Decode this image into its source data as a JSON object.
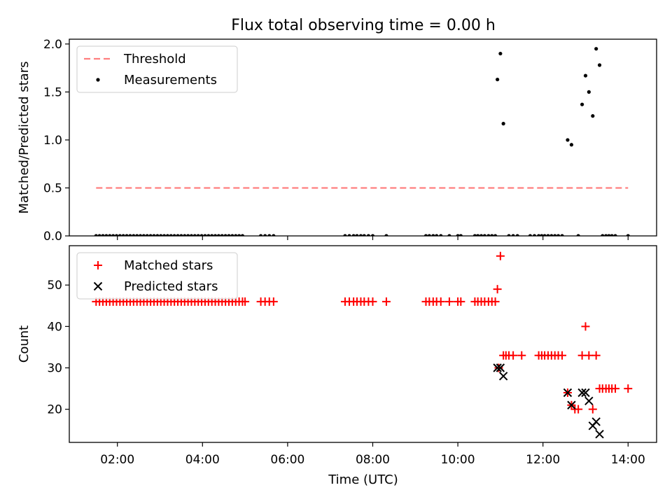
{
  "figure": {
    "title": "Flux total observing time = 0.00 h",
    "xlabel": "Time (UTC)",
    "xlim": [
      0.87,
      14.67
    ],
    "xticks": [
      2,
      4,
      6,
      8,
      10,
      12,
      14
    ],
    "xtick_labels": [
      "02:00",
      "04:00",
      "06:00",
      "08:00",
      "10:00",
      "12:00",
      "14:00"
    ]
  },
  "chart_data": [
    {
      "type": "scatter",
      "ylabel": "Matched/Predicted stars",
      "ylim": [
        0,
        2.05
      ],
      "yticks": [
        0.0,
        0.5,
        1.0,
        1.5,
        2.0
      ],
      "ytick_labels": [
        "0.0",
        "0.5",
        "1.0",
        "1.5",
        "2.0"
      ],
      "legend": {
        "placement": "upper left",
        "entries": [
          "Threshold",
          "Measurements"
        ]
      },
      "threshold": {
        "name": "Threshold",
        "y": 0.5,
        "x_range": [
          1.5,
          14.0
        ],
        "color": "#ff7f7f",
        "style": "dashed"
      },
      "series": [
        {
          "name": "Measurements",
          "color": "#000000",
          "marker": "dot",
          "points": [
            [
              1.5,
              0
            ],
            [
              1.58,
              0
            ],
            [
              1.66,
              0
            ],
            [
              1.74,
              0
            ],
            [
              1.82,
              0
            ],
            [
              1.9,
              0
            ],
            [
              1.98,
              0
            ],
            [
              2.06,
              0
            ],
            [
              2.14,
              0
            ],
            [
              2.22,
              0
            ],
            [
              2.3,
              0
            ],
            [
              2.38,
              0
            ],
            [
              2.46,
              0
            ],
            [
              2.54,
              0
            ],
            [
              2.62,
              0
            ],
            [
              2.7,
              0
            ],
            [
              2.78,
              0
            ],
            [
              2.86,
              0
            ],
            [
              2.94,
              0
            ],
            [
              3.02,
              0
            ],
            [
              3.1,
              0
            ],
            [
              3.18,
              0
            ],
            [
              3.26,
              0
            ],
            [
              3.34,
              0
            ],
            [
              3.42,
              0
            ],
            [
              3.5,
              0
            ],
            [
              3.58,
              0
            ],
            [
              3.66,
              0
            ],
            [
              3.74,
              0
            ],
            [
              3.82,
              0
            ],
            [
              3.9,
              0
            ],
            [
              3.98,
              0
            ],
            [
              4.06,
              0
            ],
            [
              4.14,
              0
            ],
            [
              4.22,
              0
            ],
            [
              4.3,
              0
            ],
            [
              4.38,
              0
            ],
            [
              4.46,
              0
            ],
            [
              4.54,
              0
            ],
            [
              4.62,
              0
            ],
            [
              4.7,
              0
            ],
            [
              4.78,
              0
            ],
            [
              4.86,
              0
            ],
            [
              4.94,
              0
            ],
            [
              5.37,
              0
            ],
            [
              5.47,
              0
            ],
            [
              5.57,
              0
            ],
            [
              5.67,
              0
            ],
            [
              7.35,
              0
            ],
            [
              7.45,
              0
            ],
            [
              7.55,
              0
            ],
            [
              7.63,
              0
            ],
            [
              7.72,
              0
            ],
            [
              7.8,
              0
            ],
            [
              7.9,
              0
            ],
            [
              8.0,
              0
            ],
            [
              8.32,
              0
            ],
            [
              9.25,
              0
            ],
            [
              9.33,
              0
            ],
            [
              9.42,
              0
            ],
            [
              9.5,
              0
            ],
            [
              9.6,
              0
            ],
            [
              9.8,
              0
            ],
            [
              10.0,
              0
            ],
            [
              10.07,
              0
            ],
            [
              10.4,
              0
            ],
            [
              10.47,
              0
            ],
            [
              10.55,
              0
            ],
            [
              10.63,
              0
            ],
            [
              10.72,
              0
            ],
            [
              10.8,
              0
            ],
            [
              10.88,
              0
            ],
            [
              10.93,
              1.63
            ],
            [
              11.0,
              1.9
            ],
            [
              11.07,
              1.17
            ],
            [
              11.2,
              0
            ],
            [
              11.3,
              0
            ],
            [
              11.4,
              0
            ],
            [
              11.7,
              0
            ],
            [
              11.8,
              0
            ],
            [
              11.9,
              0
            ],
            [
              11.97,
              0
            ],
            [
              12.04,
              0
            ],
            [
              12.12,
              0
            ],
            [
              12.2,
              0
            ],
            [
              12.28,
              0
            ],
            [
              12.36,
              0
            ],
            [
              12.45,
              0
            ],
            [
              12.58,
              1.0
            ],
            [
              12.67,
              0.95
            ],
            [
              12.83,
              0
            ],
            [
              12.92,
              1.37
            ],
            [
              13.0,
              1.67
            ],
            [
              13.08,
              1.5
            ],
            [
              13.17,
              1.25
            ],
            [
              13.25,
              1.95
            ],
            [
              13.33,
              1.78
            ],
            [
              13.4,
              0
            ],
            [
              13.48,
              0
            ],
            [
              13.55,
              0
            ],
            [
              13.62,
              0
            ],
            [
              13.7,
              0
            ],
            [
              14.0,
              0
            ]
          ]
        }
      ]
    },
    {
      "type": "scatter",
      "ylabel": "Count",
      "ylim": [
        12,
        59.5
      ],
      "yticks": [
        20,
        30,
        40,
        50
      ],
      "ytick_labels": [
        "20",
        "30",
        "40",
        "50"
      ],
      "legend": {
        "placement": "upper left",
        "entries": [
          "Matched stars",
          "Predicted stars"
        ]
      },
      "series": [
        {
          "name": "Matched stars",
          "color": "#ff0000",
          "marker": "plus",
          "points": [
            [
              1.5,
              46
            ],
            [
              1.58,
              46
            ],
            [
              1.66,
              46
            ],
            [
              1.74,
              46
            ],
            [
              1.82,
              46
            ],
            [
              1.9,
              46
            ],
            [
              1.98,
              46
            ],
            [
              2.06,
              46
            ],
            [
              2.14,
              46
            ],
            [
              2.22,
              46
            ],
            [
              2.3,
              46
            ],
            [
              2.38,
              46
            ],
            [
              2.46,
              46
            ],
            [
              2.54,
              46
            ],
            [
              2.62,
              46
            ],
            [
              2.7,
              46
            ],
            [
              2.78,
              46
            ],
            [
              2.86,
              46
            ],
            [
              2.94,
              46
            ],
            [
              3.02,
              46
            ],
            [
              3.1,
              46
            ],
            [
              3.18,
              46
            ],
            [
              3.26,
              46
            ],
            [
              3.34,
              46
            ],
            [
              3.42,
              46
            ],
            [
              3.5,
              46
            ],
            [
              3.58,
              46
            ],
            [
              3.66,
              46
            ],
            [
              3.74,
              46
            ],
            [
              3.82,
              46
            ],
            [
              3.9,
              46
            ],
            [
              3.98,
              46
            ],
            [
              4.06,
              46
            ],
            [
              4.14,
              46
            ],
            [
              4.22,
              46
            ],
            [
              4.3,
              46
            ],
            [
              4.38,
              46
            ],
            [
              4.46,
              46
            ],
            [
              4.54,
              46
            ],
            [
              4.62,
              46
            ],
            [
              4.7,
              46
            ],
            [
              4.78,
              46
            ],
            [
              4.86,
              46
            ],
            [
              4.94,
              46
            ],
            [
              5.0,
              46
            ],
            [
              5.37,
              46
            ],
            [
              5.47,
              46
            ],
            [
              5.57,
              46
            ],
            [
              5.67,
              46
            ],
            [
              7.35,
              46
            ],
            [
              7.45,
              46
            ],
            [
              7.55,
              46
            ],
            [
              7.63,
              46
            ],
            [
              7.72,
              46
            ],
            [
              7.8,
              46
            ],
            [
              7.9,
              46
            ],
            [
              8.0,
              46
            ],
            [
              8.32,
              46
            ],
            [
              9.25,
              46
            ],
            [
              9.33,
              46
            ],
            [
              9.42,
              46
            ],
            [
              9.5,
              46
            ],
            [
              9.6,
              46
            ],
            [
              9.8,
              46
            ],
            [
              10.0,
              46
            ],
            [
              10.07,
              46
            ],
            [
              10.4,
              46
            ],
            [
              10.47,
              46
            ],
            [
              10.55,
              46
            ],
            [
              10.63,
              46
            ],
            [
              10.72,
              46
            ],
            [
              10.8,
              46
            ],
            [
              10.88,
              46
            ],
            [
              10.93,
              49
            ],
            [
              11.0,
              57
            ],
            [
              10.96,
              30
            ],
            [
              11.07,
              33
            ],
            [
              11.13,
              33
            ],
            [
              11.2,
              33
            ],
            [
              11.3,
              33
            ],
            [
              11.5,
              33
            ],
            [
              11.9,
              33
            ],
            [
              11.97,
              33
            ],
            [
              12.04,
              33
            ],
            [
              12.12,
              33
            ],
            [
              12.2,
              33
            ],
            [
              12.28,
              33
            ],
            [
              12.36,
              33
            ],
            [
              12.45,
              33
            ],
            [
              12.58,
              24
            ],
            [
              12.67,
              21
            ],
            [
              12.75,
              20
            ],
            [
              12.83,
              20
            ],
            [
              12.92,
              33
            ],
            [
              13.0,
              40
            ],
            [
              13.08,
              33
            ],
            [
              13.17,
              20
            ],
            [
              13.25,
              33
            ],
            [
              13.33,
              25
            ],
            [
              13.4,
              25
            ],
            [
              13.48,
              25
            ],
            [
              13.55,
              25
            ],
            [
              13.62,
              25
            ],
            [
              13.7,
              25
            ],
            [
              14.0,
              25
            ]
          ]
        },
        {
          "name": "Predicted stars",
          "color": "#000000",
          "marker": "x",
          "points": [
            [
              10.93,
              30
            ],
            [
              11.0,
              30
            ],
            [
              11.07,
              28
            ],
            [
              12.58,
              24
            ],
            [
              12.67,
              21
            ],
            [
              12.92,
              24
            ],
            [
              13.0,
              24
            ],
            [
              13.08,
              22
            ],
            [
              13.17,
              16
            ],
            [
              13.25,
              17
            ],
            [
              13.33,
              14
            ]
          ]
        }
      ]
    }
  ]
}
